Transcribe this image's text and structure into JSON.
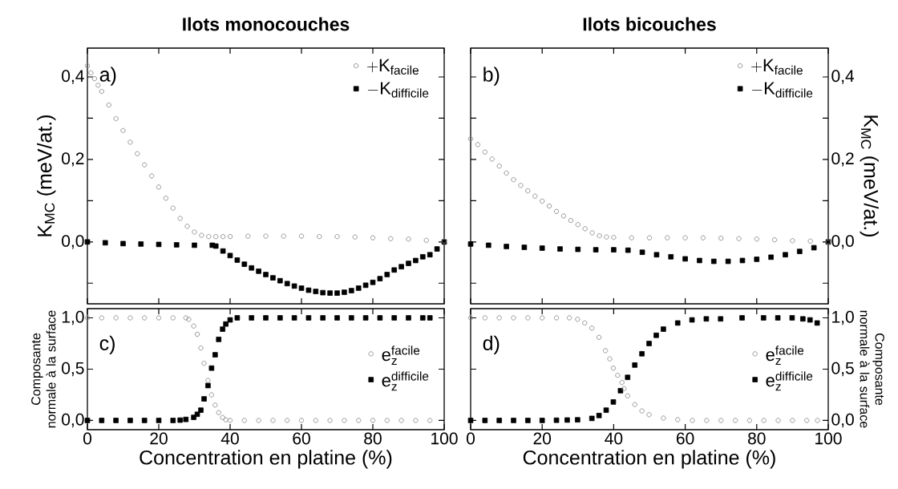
{
  "chart_data": [
    {
      "type": "scatter",
      "title": "Ilots monocouches",
      "ylabel": "K$_{MC}$ (meV/at.)",
      "xlim": [
        0,
        100
      ],
      "xticks": [
        {
          "value": 0,
          "label": null
        },
        {
          "value": 20,
          "label": null
        },
        {
          "value": 40,
          "label": null
        },
        {
          "value": 60,
          "label": null
        },
        {
          "value": 80,
          "label": null
        },
        {
          "value": 100,
          "label": null
        }
      ],
      "ylim": [
        -0.15,
        0.47
      ],
      "yticks": [
        {
          "value": -0.1,
          "label": null
        },
        {
          "value": 0,
          "label": "0,0"
        },
        {
          "value": 0.1,
          "label": null
        },
        {
          "value": 0.2,
          "label": "0,2"
        },
        {
          "value": 0.3,
          "label": null
        },
        {
          "value": 0.4,
          "label": "0,4"
        }
      ],
      "tick_labels": "y",
      "legend": "top right",
      "annotations": [
        "a)"
      ],
      "series": [
        {
          "name": "\\mathrm{+K}_{\\mathrm{facile}}",
          "color": "#7f7f7f",
          "marker": "circle",
          "x": [
            0,
            1,
            2,
            3,
            4,
            6,
            8,
            10,
            12,
            14,
            16,
            18,
            20,
            22,
            24,
            26,
            28,
            30,
            32,
            34,
            36,
            38,
            40,
            45,
            50,
            55,
            60,
            65,
            70,
            75,
            80,
            85,
            90,
            95,
            100
          ],
          "values": [
            0.427,
            0.41,
            0.396,
            0.38,
            0.365,
            0.332,
            0.299,
            0.27,
            0.242,
            0.214,
            0.187,
            0.16,
            0.133,
            0.106,
            0.082,
            0.057,
            0.038,
            0.024,
            0.016,
            0.013,
            0.013,
            0.013,
            0.013,
            0.014,
            0.014,
            0.014,
            0.014,
            0.013,
            0.013,
            0.012,
            0.01,
            0.008,
            0.007,
            0.004,
            0.002
          ]
        },
        {
          "name": "\\mathrm{-K}_{\\mathrm{difficile}}",
          "color": "#000000",
          "marker": "square",
          "x": [
            0,
            5,
            10,
            15,
            20,
            25,
            30,
            35,
            36,
            38,
            40,
            42,
            44,
            46,
            48,
            50,
            52,
            54,
            56,
            58,
            60,
            62,
            64,
            66,
            68,
            70,
            72,
            74,
            76,
            78,
            80,
            82,
            84,
            86,
            88,
            90,
            92,
            94,
            96,
            98,
            100
          ],
          "values": [
            0,
            -0.002,
            -0.004,
            -0.005,
            -0.006,
            -0.007,
            -0.008,
            -0.008,
            -0.01,
            -0.022,
            -0.033,
            -0.044,
            -0.054,
            -0.063,
            -0.071,
            -0.079,
            -0.087,
            -0.094,
            -0.101,
            -0.107,
            -0.112,
            -0.117,
            -0.12,
            -0.123,
            -0.124,
            -0.124,
            -0.122,
            -0.118,
            -0.112,
            -0.105,
            -0.098,
            -0.089,
            -0.079,
            -0.068,
            -0.06,
            -0.052,
            -0.045,
            -0.036,
            -0.031,
            -0.017,
            0.0
          ]
        }
      ]
    },
    {
      "type": "scatter",
      "title": "Ilots bicouches",
      "ylabel": "K$_{MC}$ (meV/at.)",
      "xlim": [
        0,
        100
      ],
      "xticks": [
        {
          "value": 0,
          "label": null
        },
        {
          "value": 20,
          "label": null
        },
        {
          "value": 40,
          "label": null
        },
        {
          "value": 60,
          "label": null
        },
        {
          "value": 80,
          "label": null
        },
        {
          "value": 100,
          "label": null
        }
      ],
      "ylim": [
        -0.15,
        0.47
      ],
      "yticks": [
        {
          "value": -0.1,
          "label": null
        },
        {
          "value": 0,
          "label": "0,0"
        },
        {
          "value": 0.1,
          "label": null
        },
        {
          "value": 0.2,
          "label": "0,2"
        },
        {
          "value": 0.3,
          "label": null
        },
        {
          "value": 0.4,
          "label": "0,4"
        }
      ],
      "tick_labels": "y",
      "legend": "top right",
      "annotations": [
        "b)"
      ],
      "series": [
        {
          "name": "\\mathrm{+K}_{\\mathrm{facile}}",
          "color": "#7f7f7f",
          "marker": "circle",
          "x": [
            0,
            2,
            4,
            6,
            8,
            10,
            12,
            14,
            16,
            18,
            20,
            22,
            24,
            26,
            28,
            30,
            32,
            34,
            36,
            38,
            40,
            45,
            50,
            55,
            60,
            65,
            70,
            75,
            80,
            85,
            90,
            95,
            100
          ],
          "values": [
            0.25,
            0.236,
            0.218,
            0.201,
            0.184,
            0.167,
            0.151,
            0.137,
            0.124,
            0.111,
            0.099,
            0.087,
            0.074,
            0.063,
            0.052,
            0.042,
            0.032,
            0.022,
            0.015,
            0.012,
            0.011,
            0.01,
            0.01,
            0.01,
            0.01,
            0.01,
            0.009,
            0.008,
            0.007,
            0.005,
            0.003,
            0.002,
            0.0
          ]
        },
        {
          "name": "\\mathrm{-K}_{\\mathrm{difficile}}",
          "color": "#000000",
          "marker": "square",
          "x": [
            0,
            5,
            10,
            15,
            20,
            25,
            30,
            35,
            40,
            44,
            48,
            52,
            56,
            60,
            64,
            68,
            72,
            76,
            80,
            84,
            88,
            92,
            96,
            100
          ],
          "values": [
            -0.005,
            -0.008,
            -0.011,
            -0.013,
            -0.015,
            -0.017,
            -0.018,
            -0.019,
            -0.019,
            -0.02,
            -0.025,
            -0.031,
            -0.036,
            -0.041,
            -0.045,
            -0.047,
            -0.047,
            -0.045,
            -0.042,
            -0.037,
            -0.031,
            -0.023,
            -0.014,
            0.0
          ]
        }
      ]
    },
    {
      "type": "scatter",
      "xlabel": "Concentration en platine (%)",
      "ylabel": "Composante normale à la surface",
      "xlim": [
        0,
        100
      ],
      "xticks": [
        0,
        20,
        40,
        60,
        80,
        100
      ],
      "ylim": [
        -0.09,
        1.09
      ],
      "yticks": [
        {
          "value": 0,
          "label": "0,0"
        },
        {
          "value": 0.5,
          "label": "0,5"
        },
        {
          "value": 1,
          "label": "1,0"
        }
      ],
      "legend": "right",
      "annotations": [
        "c)"
      ],
      "series": [
        {
          "name": "\\mathrm{e}_{\\mathrm{z}}^{\\mathrm{facile}}",
          "color": "#7f7f7f",
          "marker": "circle",
          "x": [
            0,
            4,
            8,
            12,
            16,
            20,
            24,
            27.6,
            28.4,
            29.8,
            30.8,
            31.8,
            32.7,
            33.8,
            34.8,
            35.8,
            36.8,
            37.9,
            38.8,
            40,
            44,
            48,
            52,
            56,
            60,
            64,
            68,
            72,
            76,
            80,
            84,
            88,
            92,
            96
          ],
          "values": [
            1,
            1,
            1,
            1,
            1,
            1,
            1,
            1,
            0.986,
            0.92,
            0.84,
            0.706,
            0.557,
            0.39,
            0.25,
            0.15,
            0.076,
            0.028,
            0.006,
            0,
            0,
            0,
            0,
            0,
            0,
            0,
            0,
            0,
            0,
            0,
            0,
            0,
            0,
            0
          ]
        },
        {
          "name": "\\mathrm{e}_{\\mathrm{z}}^{\\mathrm{difficile}}",
          "color": "#000000",
          "marker": "square",
          "x": [
            0,
            4,
            8,
            12,
            16,
            20,
            24,
            26,
            27.6,
            29.8,
            30.8,
            31.8,
            32.7,
            33.8,
            34.8,
            35.8,
            36.8,
            37.9,
            38.8,
            40,
            42,
            46,
            50,
            54,
            58,
            62,
            66,
            70,
            74,
            78,
            82,
            86,
            90,
            94,
            96
          ],
          "values": [
            0,
            0,
            0,
            0,
            0,
            0,
            0,
            0.003,
            0.01,
            0.03,
            0.06,
            0.1,
            0.21,
            0.34,
            0.51,
            0.64,
            0.79,
            0.89,
            0.94,
            0.98,
            1,
            1,
            1,
            1,
            1,
            1,
            1,
            1,
            1,
            1,
            1,
            1,
            1,
            1,
            1
          ]
        }
      ]
    },
    {
      "type": "scatter",
      "xlabel": "Concentration en platine (%)",
      "y2label": "Composante normale à la surface",
      "xlim": [
        0,
        100
      ],
      "xticks": [
        0,
        20,
        40,
        60,
        80,
        100
      ],
      "y2lim": [
        -0.09,
        1.09
      ],
      "y2ticks": [
        {
          "value": 0,
          "label": "0,0"
        },
        {
          "value": 0.5,
          "label": "0,5"
        },
        {
          "value": 1,
          "label": "1,0"
        }
      ],
      "legend": "right",
      "annotations": [
        "d)"
      ],
      "series": [
        {
          "name": "\\mathrm{e}_{\\mathrm{z}}^{\\mathrm{facile}}",
          "color": "#7f7f7f",
          "marker": "circle",
          "axis": "y2",
          "x": [
            0,
            4,
            8,
            12,
            16,
            20,
            24,
            27.6,
            29.9,
            31.9,
            33.9,
            35.9,
            37.7,
            38.9,
            39.9,
            41.1,
            42.3,
            42.9,
            43.9,
            45.9,
            47.9,
            49.9,
            53.9,
            57.9,
            62,
            66,
            70,
            74,
            78,
            82,
            86,
            90,
            94,
            97
          ],
          "values": [
            1,
            1,
            1,
            1,
            1,
            1,
            1,
            1,
            0.986,
            0.95,
            0.9,
            0.81,
            0.68,
            0.6,
            0.51,
            0.44,
            0.37,
            0.31,
            0.24,
            0.155,
            0.093,
            0.056,
            0.023,
            0.008,
            0,
            0,
            0,
            0,
            0,
            0,
            0,
            0,
            0,
            0
          ]
        },
        {
          "name": "\\mathrm{e}_{\\mathrm{z}}^{\\mathrm{difficile}}",
          "color": "#000000",
          "marker": "square",
          "axis": "y2",
          "x": [
            0,
            4,
            8,
            12,
            16,
            20,
            24,
            27,
            29.9,
            33.9,
            35.9,
            37.9,
            39.9,
            41.9,
            43.9,
            45.9,
            47.9,
            49.9,
            51.9,
            53.9,
            57.9,
            61.9,
            65.9,
            69.9,
            75.9,
            81.9,
            85.9,
            89.9,
            92.9,
            94.9,
            96.9
          ],
          "values": [
            0,
            0,
            0,
            0,
            0,
            0,
            0.002,
            0.004,
            0.006,
            0.02,
            0.048,
            0.1,
            0.18,
            0.29,
            0.42,
            0.54,
            0.65,
            0.75,
            0.83,
            0.89,
            0.95,
            0.98,
            0.99,
            0.99,
            1,
            1,
            1,
            1,
            0.99,
            0.98,
            0.95
          ]
        }
      ]
    }
  ]
}
